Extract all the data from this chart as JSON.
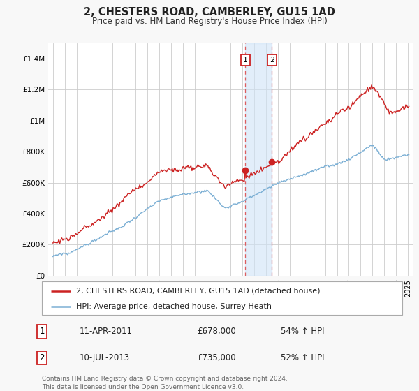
{
  "title": "2, CHESTERS ROAD, CAMBERLEY, GU15 1AD",
  "subtitle": "Price paid vs. HM Land Registry's House Price Index (HPI)",
  "ylim": [
    0,
    1500000
  ],
  "yticks": [
    0,
    200000,
    400000,
    600000,
    800000,
    1000000,
    1200000,
    1400000
  ],
  "hpi_color": "#7bafd4",
  "price_color": "#cc2222",
  "sale1_year": 2011.28,
  "sale1_price": 678000,
  "sale1_pct": "54%",
  "sale1_date": "11-APR-2011",
  "sale2_year": 2013.53,
  "sale2_price": 735000,
  "sale2_pct": "52%",
  "sale2_date": "10-JUL-2013",
  "legend_house": "2, CHESTERS ROAD, CAMBERLEY, GU15 1AD (detached house)",
  "legend_hpi": "HPI: Average price, detached house, Surrey Heath",
  "footnote1": "Contains HM Land Registry data © Crown copyright and database right 2024.",
  "footnote2": "This data is licensed under the Open Government Licence v3.0.",
  "bg_color": "#f8f8f8",
  "plot_bg": "#ffffff",
  "grid_color": "#cccccc",
  "span_color": "#d0e4f7",
  "vline_color": "#dd4444"
}
